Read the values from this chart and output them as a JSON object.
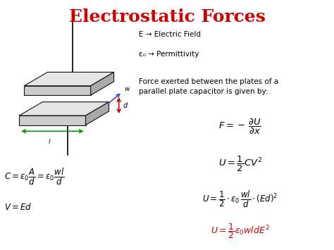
{
  "title": "Electrostatic Forces",
  "title_color": "#cc0000",
  "title_fontsize": 18,
  "bg_color": "#ffffff",
  "text_color": "#000000",
  "red_color": "#cc0000",
  "label_E": "E → Electric Field",
  "label_eps": "ε₀ → Permittivity",
  "desc": "Force exerted between the plates of a\nparallel plate capacitor is given by:",
  "eq1": "$F = -\\,\\dfrac{\\partial U}{\\partial x}$",
  "eq2": "$U = \\dfrac{1}{2}CV^2$",
  "eq3": "$U = \\dfrac{1}{2}\\cdot\\varepsilon_0\\,\\dfrac{wl}{d}\\cdot(Ed)^2$",
  "eq4": "$U = \\dfrac{1}{2}\\varepsilon_0 wldE^2$",
  "eq_C": "$C = \\varepsilon_0\\dfrac{A}{d} = \\varepsilon_0\\dfrac{wl}{d}$",
  "eq_V": "$V = Ed$",
  "figsize": [
    4.74,
    3.55
  ],
  "dpi": 100,
  "plate_face": "#cccccc",
  "plate_top": "#e5e5e5",
  "plate_right": "#aaaaaa",
  "plate_edge": "#111111"
}
